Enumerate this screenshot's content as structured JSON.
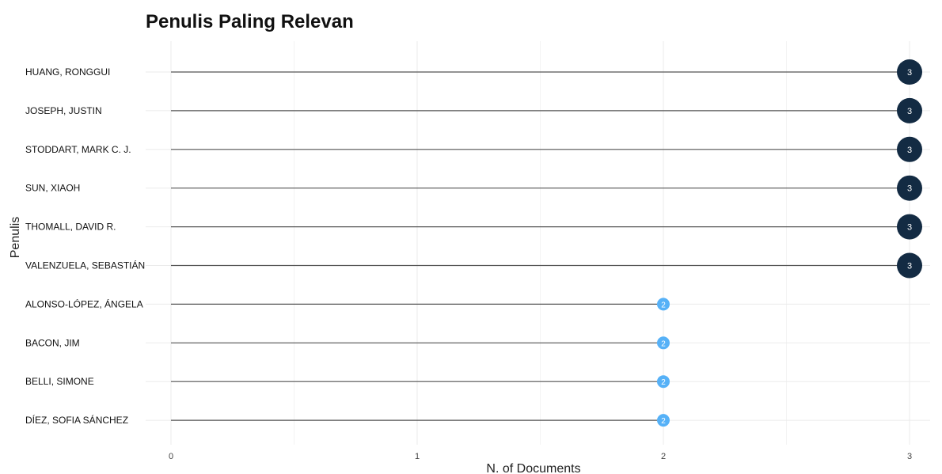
{
  "chart_data": {
    "type": "lollipop",
    "title": "Penulis Paling Relevan",
    "xlabel": "N. of Documents",
    "ylabel": "Penulis",
    "xlim": [
      0,
      3
    ],
    "x_ticks": [
      "0",
      "1",
      "2",
      "3"
    ],
    "grid": true,
    "categories": [
      "HUANG, RONGGUI",
      "JOSEPH, JUSTIN",
      "STODDART, MARK C. J.",
      "SUN, XIAOH",
      "THOMALL, DAVID R.",
      "VALENZUELA, SEBASTIÁN",
      "ALONSO-LÓPEZ, ÁNGELA",
      "BACON, JIM",
      "BELLI, SIMONE",
      "DÍEZ, SOFIA SÁNCHEZ"
    ],
    "values": [
      3,
      3,
      3,
      3,
      3,
      3,
      2,
      2,
      2,
      2
    ],
    "colors": {
      "high": "#132b43",
      "low": "#56b1f7",
      "stem": "#555555",
      "grid": "#ebebeb"
    }
  }
}
